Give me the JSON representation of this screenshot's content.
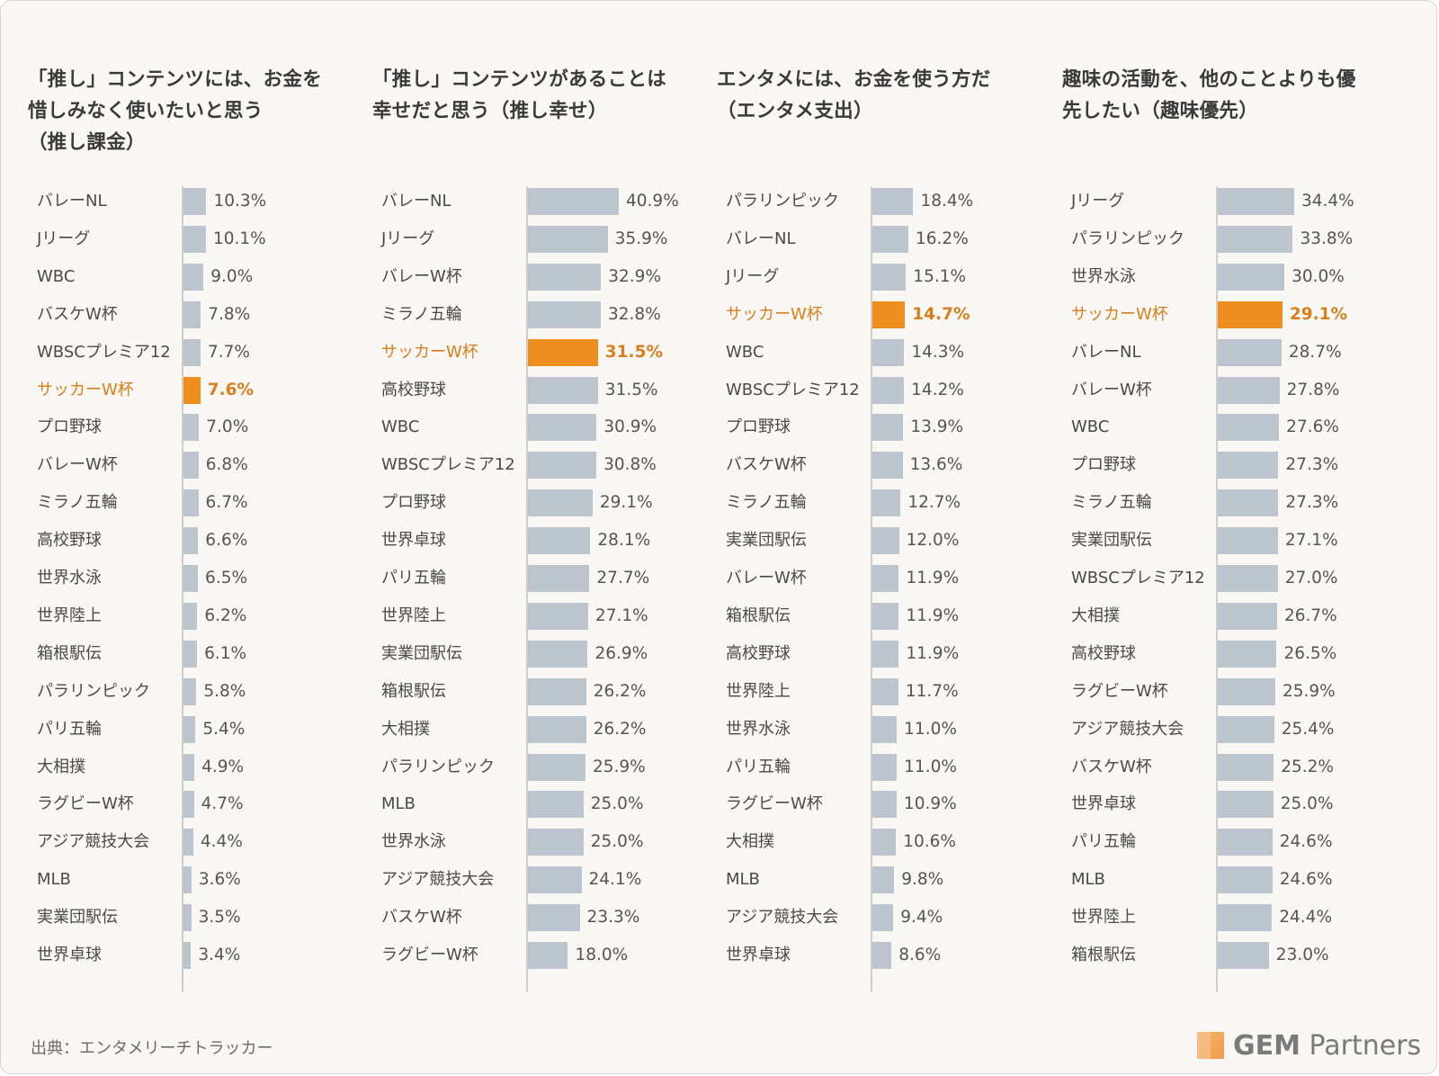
{
  "source_text": "出典：エンタメリーチトラッカー",
  "logo": {
    "bold": "GEM",
    "rest": " Partners"
  },
  "colors": {
    "bar": "#bcc4ce",
    "highlight": "#ee8e1e",
    "highlight_text": "#d87f1c"
  },
  "chart_data": [
    {
      "type": "bar",
      "orientation": "horizontal",
      "title": "「推し」コンテンツには、お金を\n惜しみなく使いたいと思う\n（推し課金）",
      "highlight": "サッカーW杯",
      "xlim": [
        0,
        50
      ],
      "categories": [
        "バレーNL",
        "Jリーグ",
        "WBC",
        "バスケW杯",
        "WBSCプレミア12",
        "サッカーW杯",
        "プロ野球",
        "バレーW杯",
        "ミラノ五輪",
        "高校野球",
        "世界水泳",
        "世界陸上",
        "箱根駅伝",
        "パラリンピック",
        "パリ五輪",
        "大相撲",
        "ラグビーW杯",
        "アジア競技大会",
        "MLB",
        "実業団駅伝",
        "世界卓球"
      ],
      "values": [
        10.3,
        10.1,
        9.0,
        7.8,
        7.7,
        7.6,
        7.0,
        6.8,
        6.7,
        6.6,
        6.5,
        6.2,
        6.1,
        5.8,
        5.4,
        4.9,
        4.7,
        4.4,
        3.6,
        3.5,
        3.4
      ],
      "labels": [
        "10.3%",
        "10.1%",
        "9.0%",
        "7.8%",
        "7.7%",
        "7.6%",
        "7.0%",
        "6.8%",
        "6.7%",
        "6.6%",
        "6.5%",
        "6.2%",
        "6.1%",
        "5.8%",
        "5.4%",
        "4.9%",
        "4.7%",
        "4.4%",
        "3.6%",
        "3.5%",
        "3.4%"
      ]
    },
    {
      "type": "bar",
      "orientation": "horizontal",
      "title": "「推し」コンテンツがあることは\n幸せだと思う（推し幸せ）",
      "highlight": "サッカーW杯",
      "xlim": [
        0,
        50
      ],
      "categories": [
        "バレーNL",
        "Jリーグ",
        "バレーW杯",
        "ミラノ五輪",
        "サッカーW杯",
        "高校野球",
        "WBC",
        "WBSCプレミア12",
        "プロ野球",
        "世界卓球",
        "パリ五輪",
        "世界陸上",
        "実業団駅伝",
        "箱根駅伝",
        "大相撲",
        "パラリンピック",
        "MLB",
        "世界水泳",
        "アジア競技大会",
        "バスケW杯",
        "ラグビーW杯"
      ],
      "values": [
        40.9,
        35.9,
        32.9,
        32.8,
        31.5,
        31.5,
        30.9,
        30.8,
        29.1,
        28.1,
        27.7,
        27.1,
        26.9,
        26.2,
        26.2,
        25.9,
        25.0,
        25.0,
        24.1,
        23.3,
        18.0
      ],
      "labels": [
        "40.9%",
        "35.9%",
        "32.9%",
        "32.8%",
        "31.5%",
        "31.5%",
        "30.9%",
        "30.8%",
        "29.1%",
        "28.1%",
        "27.7%",
        "27.1%",
        "26.9%",
        "26.2%",
        "26.2%",
        "25.9%",
        "25.0%",
        "25.0%",
        "24.1%",
        "23.3%",
        "18.0%"
      ]
    },
    {
      "type": "bar",
      "orientation": "horizontal",
      "title": "エンタメには、お金を使う方だ\n（エンタメ支出）",
      "highlight": "サッカーW杯",
      "xlim": [
        0,
        50
      ],
      "categories": [
        "パラリンピック",
        "バレーNL",
        "Jリーグ",
        "サッカーW杯",
        "WBC",
        "WBSCプレミア12",
        "プロ野球",
        "バスケW杯",
        "ミラノ五輪",
        "実業団駅伝",
        "バレーW杯",
        "箱根駅伝",
        "高校野球",
        "世界陸上",
        "世界水泳",
        "パリ五輪",
        "ラグビーW杯",
        "大相撲",
        "MLB",
        "アジア競技大会",
        "世界卓球"
      ],
      "values": [
        18.4,
        16.2,
        15.1,
        14.7,
        14.3,
        14.2,
        13.9,
        13.6,
        12.7,
        12.0,
        11.9,
        11.9,
        11.9,
        11.7,
        11.0,
        11.0,
        10.9,
        10.6,
        9.8,
        9.4,
        8.6
      ],
      "labels": [
        "18.4%",
        "16.2%",
        "15.1%",
        "14.7%",
        "14.3%",
        "14.2%",
        "13.9%",
        "13.6%",
        "12.7%",
        "12.0%",
        "11.9%",
        "11.9%",
        "11.9%",
        "11.7%",
        "11.0%",
        "11.0%",
        "10.9%",
        "10.6%",
        "9.8%",
        "9.4%",
        "8.6%"
      ]
    },
    {
      "type": "bar",
      "orientation": "horizontal",
      "title": "趣味の活動を、他のことよりも優\n先したい（趣味優先）",
      "highlight": "サッカーW杯",
      "xlim": [
        0,
        50
      ],
      "categories": [
        "Jリーグ",
        "パラリンピック",
        "世界水泳",
        "サッカーW杯",
        "バレーNL",
        "バレーW杯",
        "WBC",
        "プロ野球",
        "ミラノ五輪",
        "実業団駅伝",
        "WBSCプレミア12",
        "大相撲",
        "高校野球",
        "ラグビーW杯",
        "アジア競技大会",
        "バスケW杯",
        "世界卓球",
        "パリ五輪",
        "MLB",
        "世界陸上",
        "箱根駅伝"
      ],
      "values": [
        34.4,
        33.8,
        30.0,
        29.1,
        28.7,
        27.8,
        27.6,
        27.3,
        27.3,
        27.1,
        27.0,
        26.7,
        26.5,
        25.9,
        25.4,
        25.2,
        25.0,
        24.6,
        24.6,
        24.4,
        23.0
      ],
      "labels": [
        "34.4%",
        "33.8%",
        "30.0%",
        "29.1%",
        "28.7%",
        "27.8%",
        "27.6%",
        "27.3%",
        "27.3%",
        "27.1%",
        "27.0%",
        "26.7%",
        "26.5%",
        "25.9%",
        "25.4%",
        "25.2%",
        "25.0%",
        "24.6%",
        "24.6%",
        "24.4%",
        "23.0%"
      ]
    }
  ]
}
